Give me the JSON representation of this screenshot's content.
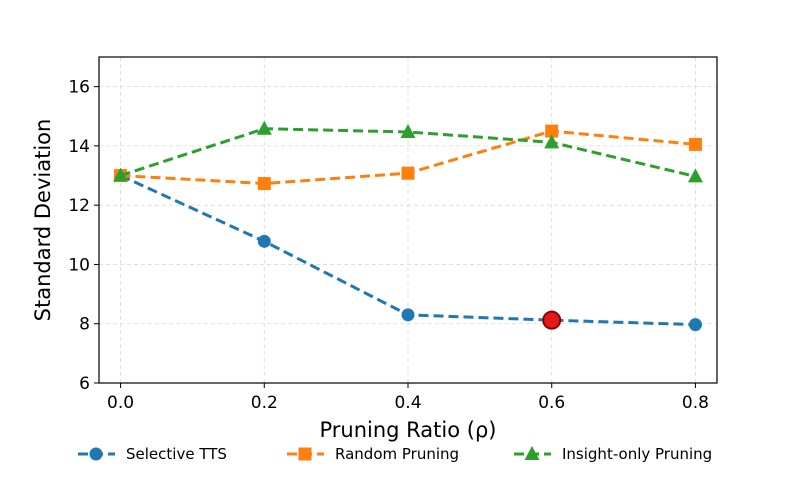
{
  "chart_data": {
    "type": "line",
    "title": "",
    "xlabel": "Pruning Ratio (ρ)",
    "ylabel": "Standard Deviation",
    "x": [
      0.0,
      0.2,
      0.4,
      0.6,
      0.8
    ],
    "xticks": [
      "0.0",
      "0.2",
      "0.4",
      "0.6",
      "0.8"
    ],
    "xlim": [
      -0.03,
      0.83
    ],
    "yticks": [
      "6",
      "8",
      "10",
      "12",
      "14",
      "16"
    ],
    "ytick_values": [
      6,
      8,
      10,
      12,
      14,
      16
    ],
    "ylim": [
      6,
      17
    ],
    "grid": true,
    "legend_position": "bottom-center",
    "series": [
      {
        "name": "Selective TTS",
        "marker": "circle",
        "color": "#1f77b4",
        "values": [
          13.0,
          10.78,
          8.3,
          8.12,
          7.97
        ]
      },
      {
        "name": "Random Pruning",
        "marker": "square",
        "color": "#ff7f0e",
        "values": [
          13.0,
          12.73,
          13.08,
          14.5,
          14.05
        ]
      },
      {
        "name": "Insight-only Pruning",
        "marker": "triangle",
        "color": "#2ca02c",
        "values": [
          13.0,
          14.58,
          14.47,
          14.12,
          12.97
        ]
      }
    ],
    "highlight": {
      "series": "Selective TTS",
      "x": 0.6,
      "y": 8.12,
      "fill": "#e31a1c",
      "edge": "#8b0000"
    }
  }
}
